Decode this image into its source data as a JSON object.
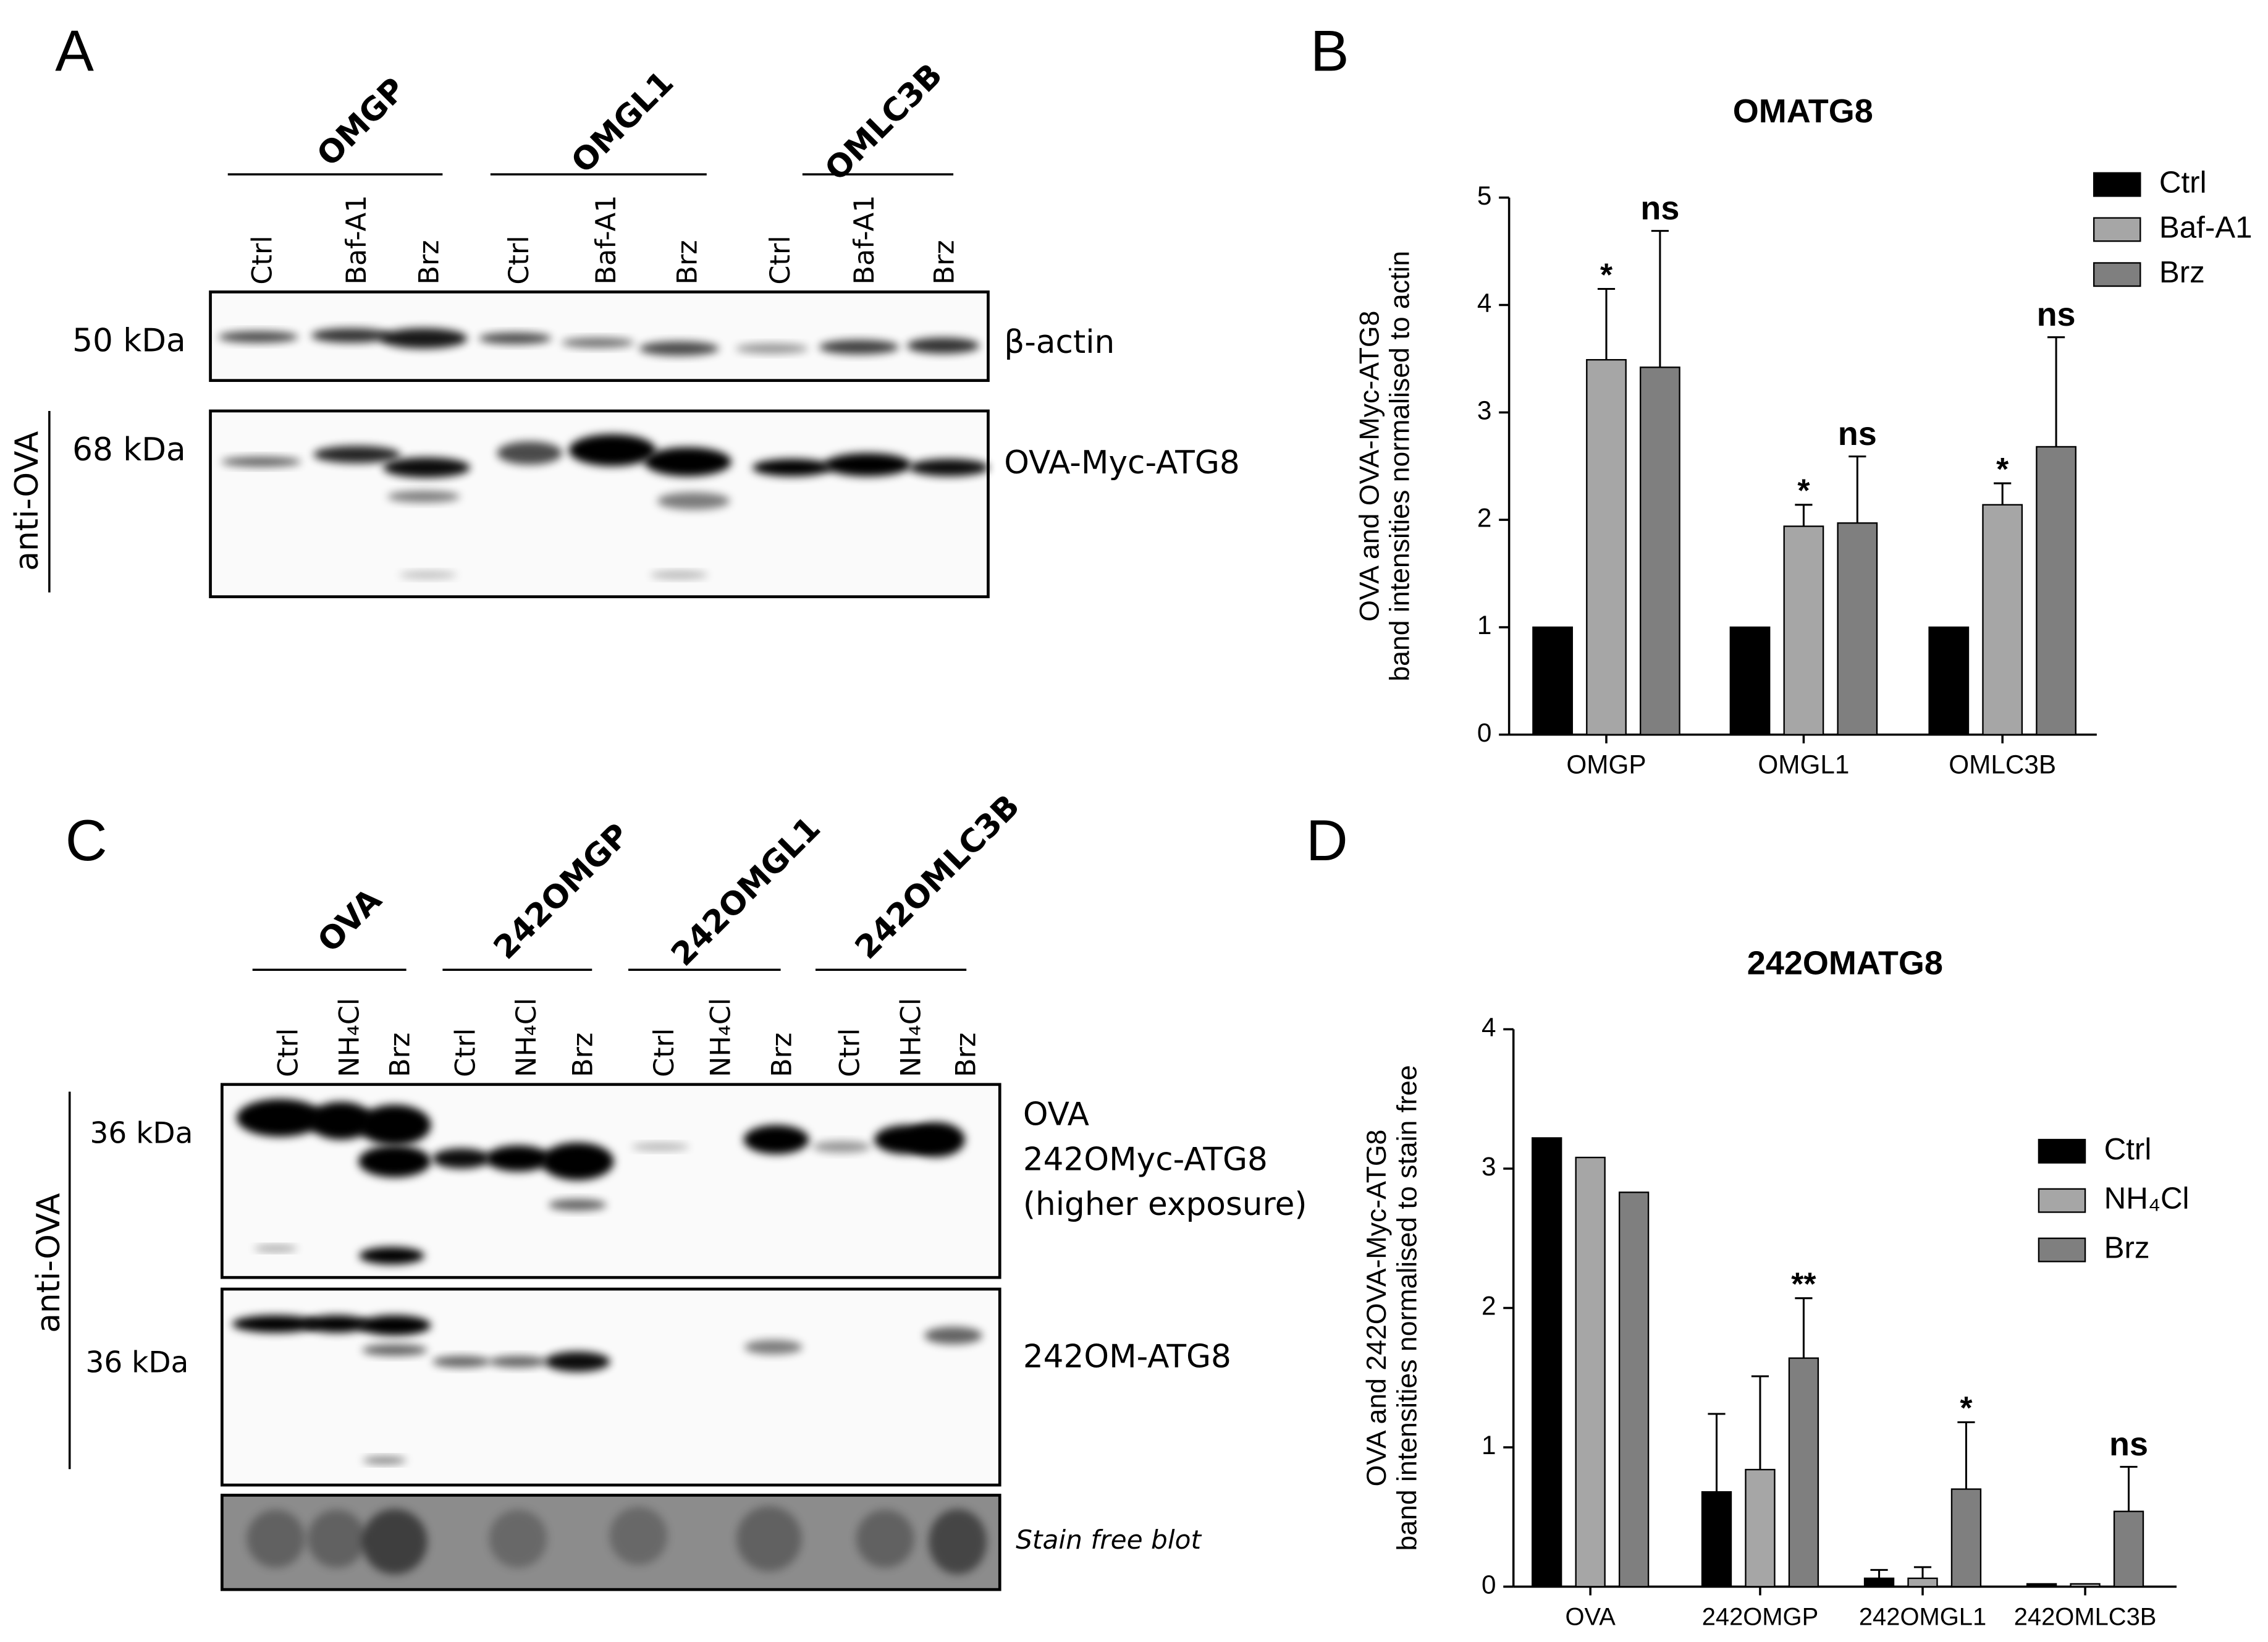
{
  "panels": {
    "A": {
      "letter": "A",
      "groups": [
        "OMGP",
        "OMGL1",
        "OMLC3B"
      ],
      "lanes": [
        "Ctrl",
        "Baf-A1",
        "Brz",
        "Ctrl",
        "Baf-A1",
        "Brz",
        "Ctrl",
        "Baf-A1",
        "Brz"
      ],
      "markers": [
        "50 kDa",
        "68 kDa"
      ],
      "blots": [
        "β-actin",
        "OVA-Myc-ATG8"
      ],
      "antibody": "anti-OVA"
    },
    "B": {
      "letter": "B"
    },
    "C": {
      "letter": "C",
      "groups": [
        "OVA",
        "242OMGP",
        "242OMGL1",
        "242OMLC3B"
      ],
      "lanes": [
        "Ctrl",
        "NH₄Cl",
        "Brz",
        "Ctrl",
        "NH₄Cl",
        "Brz",
        "Ctrl",
        "NH₄Cl",
        "Brz",
        "Ctrl",
        "NH₄Cl",
        "Brz"
      ],
      "markers": [
        "36 kDa",
        "36 kDa"
      ],
      "blots": [
        "OVA",
        "242OMyc-ATG8",
        "(higher exposure)",
        "242OM-ATG8",
        "Stain free blot"
      ],
      "antibody": "anti-OVA"
    },
    "D": {
      "letter": "D"
    }
  },
  "chart_data": [
    {
      "type": "bar",
      "title": "OMATG8",
      "ylabel": [
        "OVA and OVA-Myc-ATG8",
        "band intensities normalised to actin"
      ],
      "categories": [
        "OMGP",
        "OMGL1",
        "OMLC3B"
      ],
      "series": [
        {
          "name": "Ctrl",
          "color": "#000000",
          "values": [
            1,
            1,
            1
          ],
          "errors": [
            null,
            null,
            null
          ],
          "annotations": [
            null,
            null,
            null
          ]
        },
        {
          "name": "Baf-A1",
          "color": "#a6a6a6",
          "values": [
            3.49,
            1.94,
            2.14
          ],
          "errors": [
            0.66,
            0.2,
            0.2
          ],
          "annotations": [
            "*",
            "*",
            "*"
          ]
        },
        {
          "name": "Brz",
          "color": "#7f7f7f",
          "values": [
            3.42,
            1.97,
            2.68
          ],
          "errors": [
            1.27,
            0.62,
            1.02
          ],
          "annotations": [
            "ns",
            "ns",
            "ns"
          ]
        }
      ],
      "ylim": [
        0,
        5
      ],
      "yticks": [
        0,
        1,
        2,
        3,
        4,
        5
      ],
      "legend": "top-right"
    },
    {
      "type": "bar",
      "title": "242OMATG8",
      "ylabel": [
        "OVA and 242OVA-Myc-ATG8",
        "band intensities normalised to stain free"
      ],
      "categories": [
        "OVA",
        "242OMGP",
        "242OMGL1",
        "242OMLC3B"
      ],
      "series": [
        {
          "name": "Ctrl",
          "color": "#000000",
          "values": [
            3.22,
            0.68,
            0.06,
            0.02
          ],
          "errors": [
            null,
            0.56,
            0.06,
            null
          ],
          "annotations": [
            null,
            null,
            null,
            null
          ]
        },
        {
          "name": "NH₄Cl",
          "color": "#a6a6a6",
          "values": [
            3.08,
            0.84,
            0.06,
            0.02
          ],
          "errors": [
            null,
            0.67,
            0.08,
            null
          ],
          "annotations": [
            null,
            null,
            null,
            null
          ]
        },
        {
          "name": "Brz",
          "color": "#7f7f7f",
          "values": [
            2.83,
            1.64,
            0.7,
            0.54
          ],
          "errors": [
            null,
            0.43,
            0.48,
            0.32
          ],
          "annotations": [
            null,
            "**",
            "*",
            "ns"
          ]
        }
      ],
      "ylim": [
        0,
        4
      ],
      "yticks": [
        0,
        1,
        2,
        3,
        4
      ],
      "legend": "right"
    }
  ]
}
